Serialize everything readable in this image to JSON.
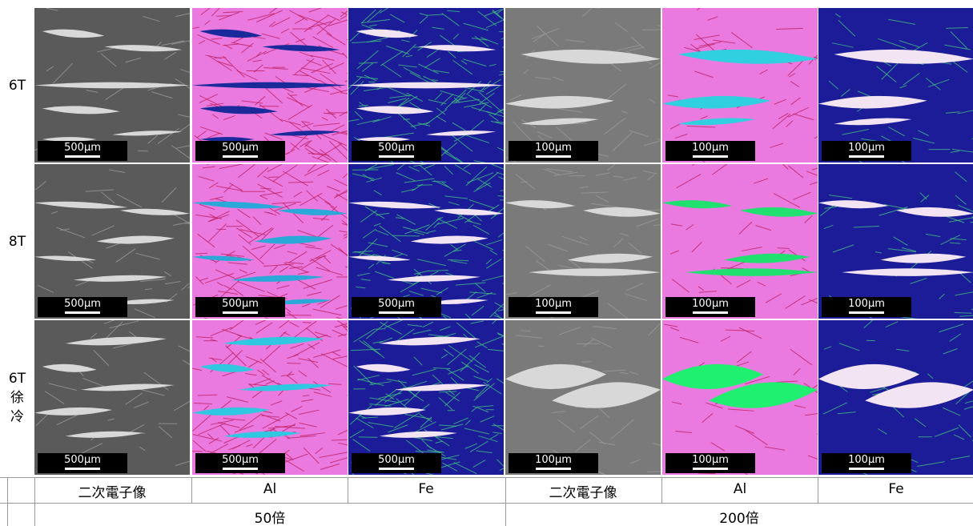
{
  "rows": [
    {
      "label_lines": [
        "6T"
      ]
    },
    {
      "label_lines": [
        "8T"
      ]
    },
    {
      "label_lines": [
        "6T",
        "徐",
        "冷"
      ]
    }
  ],
  "columns": [
    {
      "label": "二次電子像",
      "scale_bar": "500μm"
    },
    {
      "label": "Al",
      "scale_bar": "500μm"
    },
    {
      "label": "Fe",
      "scale_bar": "500μm"
    },
    {
      "label": "二次電子像",
      "scale_bar": "100μm"
    },
    {
      "label": "Al",
      "scale_bar": "100μm"
    },
    {
      "label": "Fe",
      "scale_bar": "100μm"
    }
  ],
  "groups": [
    "50倍",
    "200倍"
  ]
}
